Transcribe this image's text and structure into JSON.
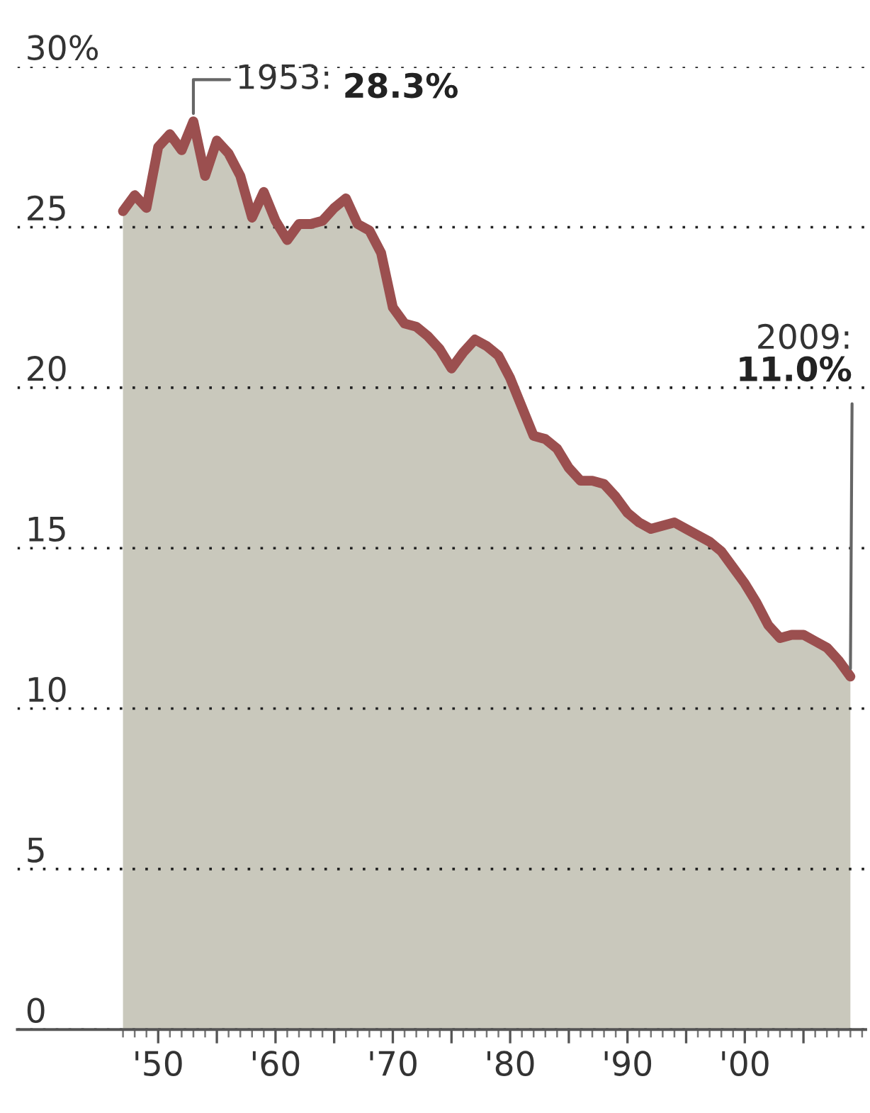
{
  "chart_data": {
    "type": "area",
    "x": [
      1947,
      1948,
      1949,
      1950,
      1951,
      1952,
      1953,
      1954,
      1955,
      1956,
      1957,
      1958,
      1959,
      1960,
      1961,
      1962,
      1963,
      1964,
      1965,
      1966,
      1967,
      1968,
      1969,
      1970,
      1971,
      1972,
      1973,
      1974,
      1975,
      1976,
      1977,
      1978,
      1979,
      1980,
      1981,
      1982,
      1983,
      1984,
      1985,
      1986,
      1987,
      1988,
      1989,
      1990,
      1991,
      1992,
      1993,
      1994,
      1995,
      1996,
      1997,
      1998,
      1999,
      2000,
      2001,
      2002,
      2003,
      2004,
      2005,
      2006,
      2007,
      2008,
      2009
    ],
    "series": [
      {
        "color": "#9b4f4f",
        "values": [
          25.5,
          26.0,
          25.6,
          27.5,
          27.9,
          27.4,
          28.3,
          26.6,
          27.7,
          27.3,
          26.6,
          25.3,
          26.1,
          25.2,
          24.6,
          25.1,
          25.1,
          25.2,
          25.6,
          25.9,
          25.1,
          24.9,
          24.2,
          22.5,
          22.0,
          21.9,
          21.6,
          21.2,
          20.6,
          21.1,
          21.5,
          21.3,
          21.0,
          20.3,
          19.4,
          18.5,
          18.4,
          18.1,
          17.5,
          17.1,
          17.1,
          17.0,
          16.6,
          16.1,
          15.8,
          15.6,
          15.7,
          15.8,
          15.6,
          15.4,
          15.2,
          14.9,
          14.4,
          13.9,
          13.3,
          12.6,
          12.2,
          12.3,
          12.3,
          12.1,
          11.9,
          11.5,
          11.0
        ]
      }
    ],
    "xlim": [
      1938,
      2010.3
    ],
    "xticks": [
      {
        "value": 1950,
        "label": "'50"
      },
      {
        "value": 1955,
        "label": null
      },
      {
        "value": 1960,
        "label": "'60"
      },
      {
        "value": 1965,
        "label": null
      },
      {
        "value": 1970,
        "label": "'70"
      },
      {
        "value": 1975,
        "label": null
      },
      {
        "value": 1980,
        "label": "'80"
      },
      {
        "value": 1985,
        "label": null
      },
      {
        "value": 1990,
        "label": "'90"
      },
      {
        "value": 1995,
        "label": null
      },
      {
        "value": 2000,
        "label": "'00"
      },
      {
        "value": 2005,
        "label": null
      }
    ],
    "ylim": [
      0,
      30
    ],
    "yticks": [
      0,
      5,
      10,
      15,
      20,
      25,
      {
        "value": 30,
        "label": "30%"
      }
    ],
    "grid": "y",
    "annotations": [
      {
        "text": "1953: 28.3%",
        "x": 1953,
        "y": 28.3
      },
      {
        "text": "2009: 11.0%",
        "x": 2009,
        "y": 11.0
      }
    ]
  }
}
